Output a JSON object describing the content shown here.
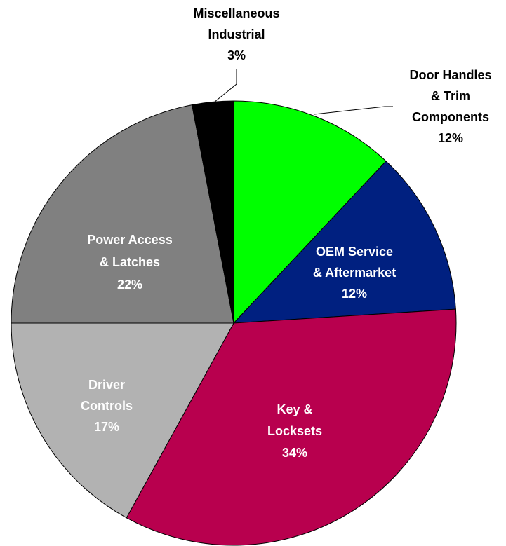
{
  "chart_data": {
    "type": "pie",
    "categories": [
      "Door Handles\n& Trim\nComponents",
      "OEM Service\n& Aftermarket",
      "Key &\nLocksets",
      "Driver\nControls",
      "Power Access\n& Latches",
      "Miscellaneous\nIndustrial"
    ],
    "values": [
      12,
      12,
      34,
      17,
      22,
      3
    ],
    "value_labels": [
      "12%",
      "12%",
      "34%",
      "17%",
      "22%",
      "3%"
    ],
    "colors": [
      "#00ff00",
      "#002080",
      "#b8004e",
      "#b2b2b2",
      "#808080",
      "#000000"
    ]
  }
}
